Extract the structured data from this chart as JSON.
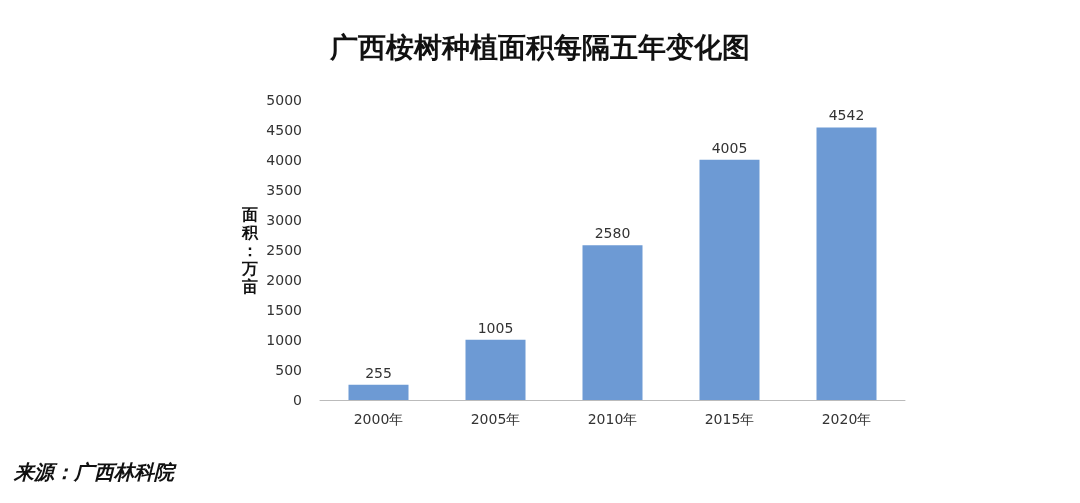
{
  "chart_data": {
    "type": "bar",
    "title": "广西桉树种植面积每隔五年变化图",
    "ylabel": "面积：万亩",
    "categories": [
      "2000年",
      "2005年",
      "2010年",
      "2015年",
      "2020年"
    ],
    "values": [
      255,
      1005,
      2580,
      4005,
      4542
    ],
    "color": "#6d9ad4",
    "ylim": [
      0,
      5000
    ],
    "yticks": [
      0,
      500,
      1000,
      1500,
      2000,
      2500,
      3000,
      3500,
      4000,
      4500,
      5000
    ],
    "grid": false,
    "data_labels": true,
    "annotations": [
      "来源：广西林科院"
    ]
  }
}
